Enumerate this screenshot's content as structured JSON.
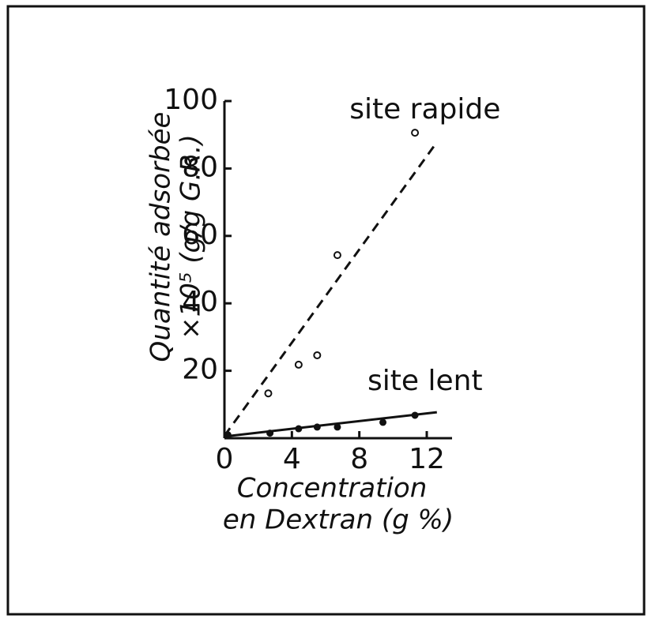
{
  "chart_data": {
    "type": "scatter",
    "ylabel": [
      "Quantité adsorbée",
      "×10⁵ (g/g G.R.)"
    ],
    "xlabel": [
      "Concentration",
      "en Dextran (g %)"
    ],
    "xlim": [
      0,
      13.5
    ],
    "ylim": [
      0,
      100
    ],
    "xticks": [
      0,
      4,
      8,
      12
    ],
    "yticks": [
      20,
      40,
      60,
      80,
      100
    ],
    "color": "#111111",
    "series": [
      {
        "name": "site rapide",
        "marker": "open",
        "line_style": "dashed",
        "x": [
          2.6,
          4.4,
          5.5,
          6.7,
          11.3
        ],
        "values": [
          13.3,
          21.8,
          24.6,
          54.3,
          90.6
        ],
        "fit": {
          "x": [
            0,
            12.6
          ],
          "values": [
            0.7,
            87.8
          ]
        }
      },
      {
        "name": "site lent",
        "marker": "filled",
        "line_style": "solid",
        "x": [
          0.2,
          2.7,
          4.4,
          5.5,
          6.7,
          9.4,
          11.3
        ],
        "values": [
          1,
          1.5,
          2.8,
          3.3,
          3.3,
          4.7,
          6.8
        ],
        "fit": {
          "x": [
            0,
            12.6
          ],
          "values": [
            0.5,
            7.7
          ]
        }
      }
    ]
  }
}
